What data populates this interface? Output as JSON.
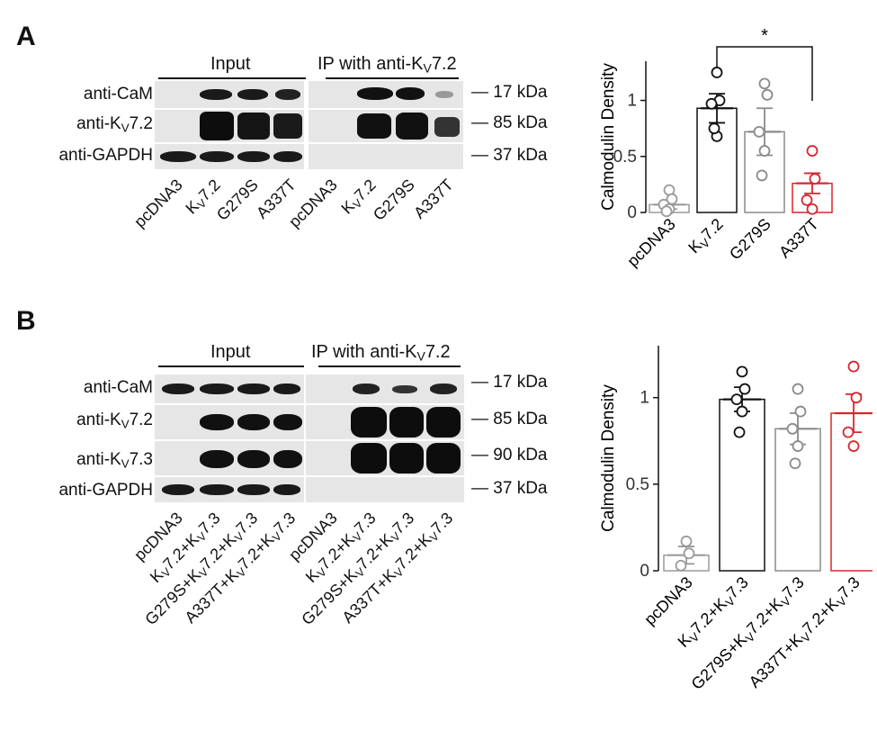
{
  "panelA": {
    "letter": "A",
    "input_header": "Input",
    "ip_header_pre": "IP with anti-K",
    "ip_header_sub": "V",
    "ip_header_post": "7.2",
    "rows": [
      {
        "label_pre": "anti-CaM",
        "label_sub": "",
        "label_post": ""
      },
      {
        "label_pre": "anti-K",
        "label_sub": "V",
        "label_post": "7.2"
      },
      {
        "label_pre": "anti-GAPDH",
        "label_sub": "",
        "label_post": ""
      }
    ],
    "markers": [
      "17 kDa",
      "85 kDa",
      "37 kDa"
    ],
    "lanes": [
      {
        "pre": "pcDNA3",
        "sub": "",
        "post": ""
      },
      {
        "pre": "K",
        "sub": "V",
        "post": "7.2"
      },
      {
        "pre": "G279S",
        "sub": "",
        "post": ""
      },
      {
        "pre": "A337T",
        "sub": "",
        "post": ""
      },
      {
        "pre": "pcDNA3",
        "sub": "",
        "post": ""
      },
      {
        "pre": "K",
        "sub": "V",
        "post": "7.2"
      },
      {
        "pre": "G279S",
        "sub": "",
        "post": ""
      },
      {
        "pre": "A337T",
        "sub": "",
        "post": ""
      }
    ]
  },
  "panelB": {
    "letter": "B",
    "input_header": "Input",
    "ip_header_pre": "IP with anti-K",
    "ip_header_sub": "V",
    "ip_header_post": "7.2",
    "rows": [
      {
        "label_pre": "anti-CaM",
        "label_sub": "",
        "label_post": ""
      },
      {
        "label_pre": "anti-K",
        "label_sub": "V",
        "label_post": "7.2"
      },
      {
        "label_pre": "anti-K",
        "label_sub": "V",
        "label_post": "7.3"
      },
      {
        "label_pre": "anti-GAPDH",
        "label_sub": "",
        "label_post": ""
      }
    ],
    "markers": [
      "17 kDa",
      "85 kDa",
      "90 kDa",
      "37 kDa"
    ],
    "lanes": [
      {
        "pre": "pcDNA3",
        "sub": "",
        "post": ""
      },
      {
        "pre": "K",
        "sub": "V",
        "post": "7.2+K"
      },
      {
        "pre": "G279S+K",
        "sub": "V",
        "post": "7.2+K"
      },
      {
        "pre": "A337T+K",
        "sub": "V",
        "post": "7.2+K"
      },
      {
        "pre": "pcDNA3",
        "sub": "",
        "post": ""
      },
      {
        "pre": "K",
        "sub": "V",
        "post": "7.2+K"
      },
      {
        "pre": "G279S+K",
        "sub": "V",
        "post": "7.2+K"
      },
      {
        "pre": "A337T+K",
        "sub": "V",
        "post": "7.2+K"
      }
    ],
    "lane_tail_sub": "V",
    "lane_tail_post": "7.3"
  },
  "chart_data": [
    {
      "type": "bar",
      "ylabel": "Calmodulin Density",
      "ylim": [
        0,
        1.35
      ],
      "yticks": [
        "0",
        "0.5",
        "1"
      ],
      "categories": [
        "pcDNA3",
        "Kv7.2",
        "G279S",
        "A337T"
      ],
      "category_labels": [
        {
          "pre": "pcDNA3",
          "sub": "",
          "post": ""
        },
        {
          "pre": "K",
          "sub": "V",
          "post": "7.2"
        },
        {
          "pre": "G279S",
          "sub": "",
          "post": ""
        },
        {
          "pre": "A337T",
          "sub": "",
          "post": ""
        }
      ],
      "values": [
        0.07,
        0.93,
        0.72,
        0.26
      ],
      "sem": [
        0.04,
        0.13,
        0.21,
        0.09
      ],
      "points": [
        [
          0.2,
          0.12,
          0.07,
          0.03,
          0.01
        ],
        [
          1.25,
          1.0,
          0.97,
          0.68,
          0.75
        ],
        [
          1.15,
          1.05,
          0.72,
          0.55,
          0.33
        ],
        [
          0.55,
          0.3,
          0.11,
          0.03
        ]
      ],
      "colors": [
        "#9a9a9a",
        "#111111",
        "#8a8a8a",
        "#d8262e"
      ],
      "significance": {
        "from": 1,
        "to": 3,
        "label": "*"
      }
    },
    {
      "type": "bar",
      "ylabel": "Calmodulin Density",
      "ylim": [
        0,
        1.3
      ],
      "yticks": [
        "0",
        "0.5",
        "1"
      ],
      "categories": [
        "pcDNA3",
        "Kv7.2+Kv7.3",
        "G279S+Kv7.2+Kv7.3",
        "A337T+Kv7.2+Kv7.3"
      ],
      "category_labels": [
        {
          "pre": "pcDNA3",
          "sub": "",
          "post": ""
        },
        {
          "pre": "K",
          "sub": "V",
          "post": "7.2+K"
        },
        {
          "pre": "G279S+K",
          "sub": "V",
          "post": "7.2+K"
        },
        {
          "pre": "A337T+K",
          "sub": "V",
          "post": "7.2+K"
        }
      ],
      "category_tail_sub": "V",
      "category_tail_post": "7.3",
      "values": [
        0.09,
        0.99,
        0.82,
        0.91
      ],
      "sem": [
        0.05,
        0.07,
        0.09,
        0.11
      ],
      "points": [
        [
          0.17,
          0.1,
          0.03
        ],
        [
          1.15,
          1.05,
          0.99,
          0.92,
          0.8
        ],
        [
          1.05,
          0.92,
          0.82,
          0.72,
          0.62
        ],
        [
          1.18,
          1.0,
          0.8,
          0.72
        ]
      ],
      "colors": [
        "#9a9a9a",
        "#111111",
        "#8a8a8a",
        "#d8262e"
      ]
    }
  ]
}
